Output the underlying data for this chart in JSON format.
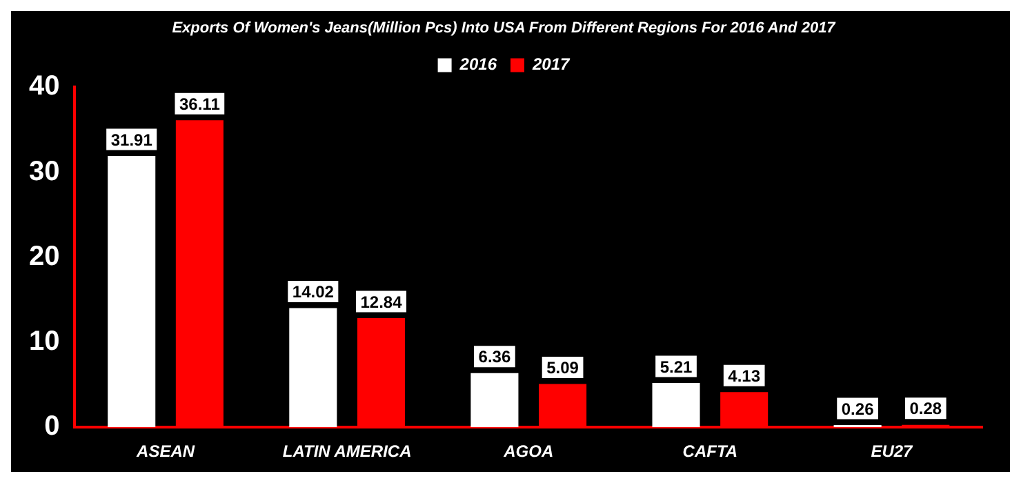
{
  "chart_data": {
    "type": "bar",
    "title": "Exports Of Women's Jeans(Million Pcs) Into USA From Different Regions For 2016 And 2017",
    "categories": [
      "ASEAN",
      "LATIN AMERICA",
      "AGOA",
      "CAFTA",
      "EU27"
    ],
    "series": [
      {
        "name": "2016",
        "color": "#ffffff",
        "values": [
          31.91,
          14.02,
          6.36,
          5.21,
          0.26
        ]
      },
      {
        "name": "2017",
        "color": "#ff0000",
        "values": [
          36.11,
          12.84,
          5.09,
          4.13,
          0.28
        ]
      }
    ],
    "ylim": [
      0,
      40
    ],
    "yticks": [
      0,
      10,
      20,
      30,
      40
    ],
    "grid": false,
    "legend": "top",
    "data_labels": true
  }
}
